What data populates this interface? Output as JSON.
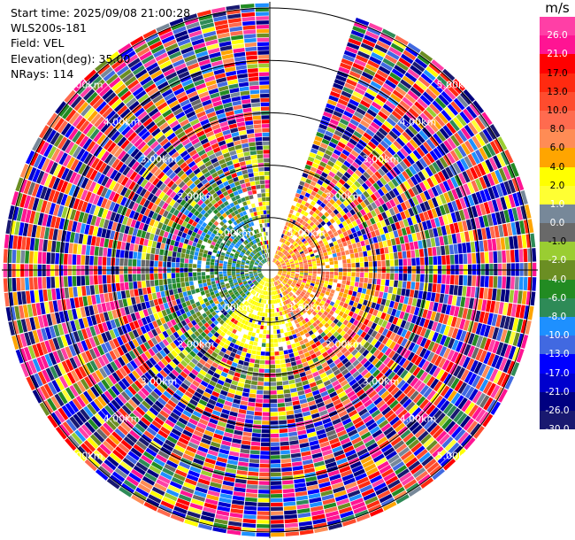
{
  "info": {
    "start_time": "Start time: 2025/09/08 21:00:28",
    "site": "WLS200s-181",
    "field": "Field: VEL",
    "elevation": "Elevation(deg): 35.00",
    "nrays": "NRays: 114"
  },
  "colorbar": {
    "unit": "m/s",
    "ticks": [
      "26.0",
      "21.0",
      "17.0",
      "13.0",
      "10.0",
      "8.0",
      "6.0",
      "4.0",
      "2.0",
      "1.0",
      "0.0",
      "-1.0",
      "-2.0",
      "-4.0",
      "-6.0",
      "-8.0",
      "-10.0",
      "-13.0",
      "-17.0",
      "-21.0",
      "-26.0",
      "-30.0"
    ],
    "bins": [
      {
        "lo": 26,
        "hi": 30,
        "color": "#ff3fa6"
      },
      {
        "lo": 21,
        "hi": 26,
        "color": "#ff1493"
      },
      {
        "lo": 17,
        "hi": 21,
        "color": "#ff0000"
      },
      {
        "lo": 13,
        "hi": 17,
        "color": "#ff2a10"
      },
      {
        "lo": 10,
        "hi": 13,
        "color": "#ff4c2e"
      },
      {
        "lo": 8,
        "hi": 10,
        "color": "#ff6b4f"
      },
      {
        "lo": 6,
        "hi": 8,
        "color": "#ff8c55"
      },
      {
        "lo": 4,
        "hi": 6,
        "color": "#ffa500"
      },
      {
        "lo": 2,
        "hi": 4,
        "color": "#ffff00"
      },
      {
        "lo": 1,
        "hi": 2,
        "color": "#ffff33"
      },
      {
        "lo": 0,
        "hi": 1,
        "color": "#778899"
      },
      {
        "lo": -1,
        "hi": 0,
        "color": "#696969"
      },
      {
        "lo": -2,
        "hi": -1,
        "color": "#9acd32"
      },
      {
        "lo": -4,
        "hi": -2,
        "color": "#6b8e23"
      },
      {
        "lo": -6,
        "hi": -4,
        "color": "#228b22"
      },
      {
        "lo": -8,
        "hi": -6,
        "color": "#2e8b57"
      },
      {
        "lo": -10,
        "hi": -8,
        "color": "#1e90ff"
      },
      {
        "lo": -13,
        "hi": -10,
        "color": "#4169e1"
      },
      {
        "lo": -17,
        "hi": -13,
        "color": "#0000ff"
      },
      {
        "lo": -21,
        "hi": -17,
        "color": "#0000cd"
      },
      {
        "lo": -26,
        "hi": -21,
        "color": "#000080"
      },
      {
        "lo": -30,
        "hi": -26,
        "color": "#191970"
      }
    ]
  },
  "range_labels": [
    "1.00km",
    "2.00km",
    "3.00km",
    "4.00km",
    "5.00km"
  ],
  "chart_data": {
    "type": "heatmap",
    "projection": "polar PPI",
    "field": "VEL",
    "units": "m/s",
    "elevation_deg": 35.0,
    "n_rays": 114,
    "max_range_km": 5.0,
    "range_rings_km": [
      1,
      2,
      3,
      4,
      5
    ],
    "missing_sector_deg": [
      0,
      18
    ],
    "value_range": [
      -30,
      30
    ],
    "near_field_pattern": [
      {
        "azimuth_deg": [
          20,
          160
        ],
        "range_km": [
          0,
          2.2
        ],
        "velocity_m_s": [
          2,
          10
        ],
        "dominant": "yellow/orange (positive)"
      },
      {
        "azimuth_deg": [
          160,
          220
        ],
        "range_km": [
          0,
          1.8
        ],
        "velocity_m_s": [
          1,
          4
        ],
        "dominant": "yellow (positive)"
      },
      {
        "azimuth_deg": [
          220,
          340
        ],
        "range_km": [
          0,
          2.2
        ],
        "velocity_m_s": [
          -10,
          -2
        ],
        "dominant": "blue/green (negative)"
      }
    ],
    "far_field": "noisy, values span full scale beyond about 2.5 km"
  }
}
